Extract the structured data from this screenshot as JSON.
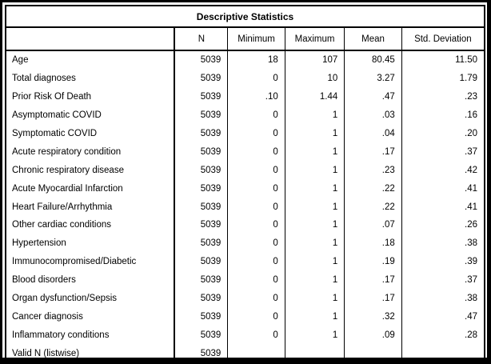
{
  "table": {
    "title": "Descriptive Statistics",
    "columns": [
      "",
      "N",
      "Minimum",
      "Maximum",
      "Mean",
      "Std. Deviation"
    ],
    "rows": [
      {
        "label": "Age",
        "n": "5039",
        "min": "18",
        "max": "107",
        "mean": "80.45",
        "std": "11.50"
      },
      {
        "label": "Total diagnoses",
        "n": "5039",
        "min": "0",
        "max": "10",
        "mean": "3.27",
        "std": "1.79"
      },
      {
        "label": "Prior Risk Of Death",
        "n": "5039",
        "min": ".10",
        "max": "1.44",
        "mean": ".47",
        "std": ".23"
      },
      {
        "label": "Asymptomatic COVID",
        "n": "5039",
        "min": "0",
        "max": "1",
        "mean": ".03",
        "std": ".16"
      },
      {
        "label": "Symptomatic COVID",
        "n": "5039",
        "min": "0",
        "max": "1",
        "mean": ".04",
        "std": ".20"
      },
      {
        "label": "Acute respiratory condition",
        "n": "5039",
        "min": "0",
        "max": "1",
        "mean": ".17",
        "std": ".37"
      },
      {
        "label": "Chronic respiratory disease",
        "n": "5039",
        "min": "0",
        "max": "1",
        "mean": ".23",
        "std": ".42"
      },
      {
        "label": "Acute Myocardial Infarction",
        "n": "5039",
        "min": "0",
        "max": "1",
        "mean": ".22",
        "std": ".41"
      },
      {
        "label": "Heart Failure/Arrhythmia",
        "n": "5039",
        "min": "0",
        "max": "1",
        "mean": ".22",
        "std": ".41"
      },
      {
        "label": "Other cardiac conditions",
        "n": "5039",
        "min": "0",
        "max": "1",
        "mean": ".07",
        "std": ".26"
      },
      {
        "label": "Hypertension",
        "n": "5039",
        "min": "0",
        "max": "1",
        "mean": ".18",
        "std": ".38"
      },
      {
        "label": "Immunocompromised/Diabetic",
        "n": "5039",
        "min": "0",
        "max": "1",
        "mean": ".19",
        "std": ".39"
      },
      {
        "label": "Blood disorders",
        "n": "5039",
        "min": "0",
        "max": "1",
        "mean": ".17",
        "std": ".37"
      },
      {
        "label": "Organ dysfunction/Sepsis",
        "n": "5039",
        "min": "0",
        "max": "1",
        "mean": ".17",
        "std": ".38"
      },
      {
        "label": "Cancer diagnosis",
        "n": "5039",
        "min": "0",
        "max": "1",
        "mean": ".32",
        "std": ".47"
      },
      {
        "label": "Inflammatory conditions",
        "n": "5039",
        "min": "0",
        "max": "1",
        "mean": ".09",
        "std": ".28"
      },
      {
        "label": "Valid N (listwise)",
        "n": "5039",
        "min": "",
        "max": "",
        "mean": "",
        "std": ""
      }
    ]
  }
}
